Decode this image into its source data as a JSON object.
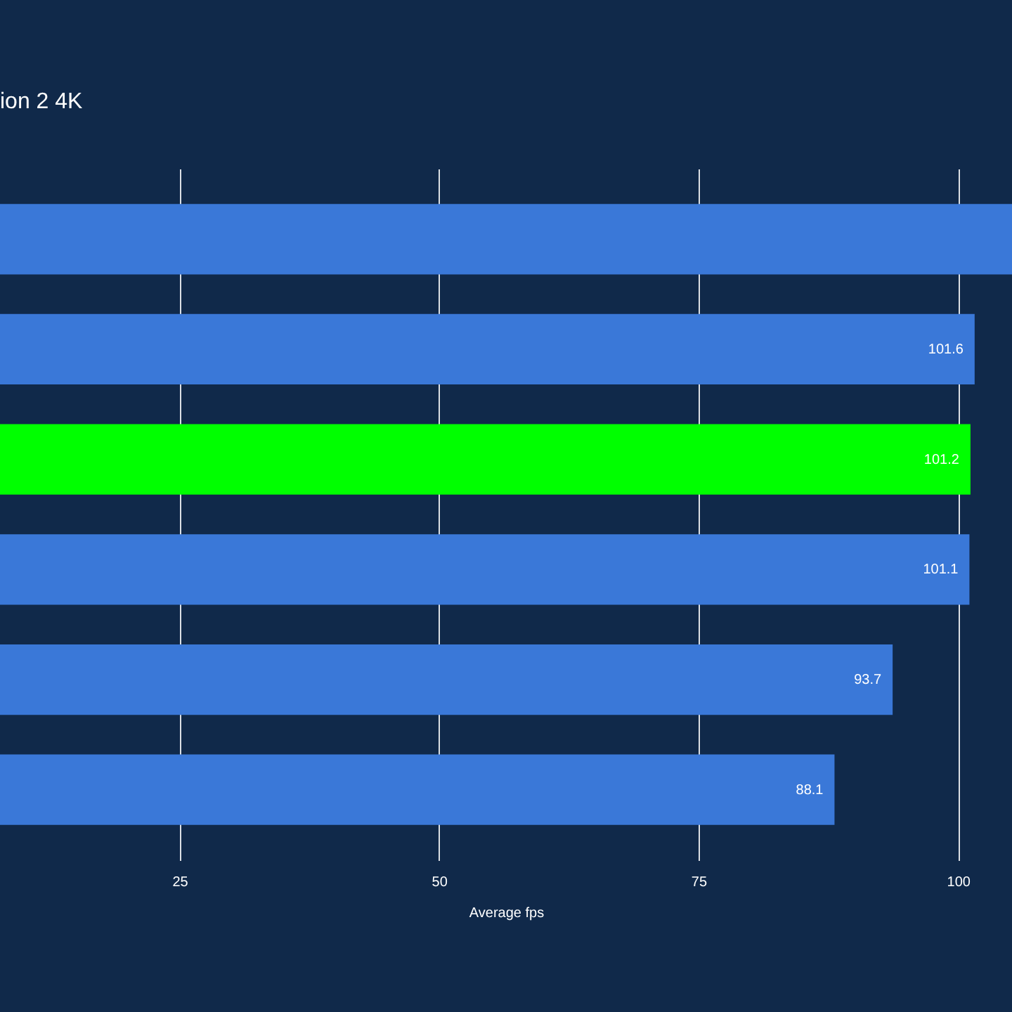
{
  "chart_data": {
    "type": "bar",
    "orientation": "horizontal",
    "title": "ion 2 4K",
    "xlabel": "Average fps",
    "categories": [
      null,
      null,
      null,
      null,
      null,
      null
    ],
    "values": [
      105.2,
      101.6,
      101.2,
      101.1,
      93.7,
      88.1
    ],
    "colors": [
      "#3a78d8",
      "#3a78d8",
      "#00ff00",
      "#3a78d8",
      "#3a78d8",
      "#3a78d8"
    ],
    "value_labels": [
      null,
      "101.6",
      "101.2",
      "101.1",
      "93.7",
      "88.1"
    ],
    "xlim": [
      7.7,
      105.2
    ],
    "xticks": [
      25,
      50,
      75,
      100
    ],
    "grid": "x",
    "tick_labels": "x"
  }
}
